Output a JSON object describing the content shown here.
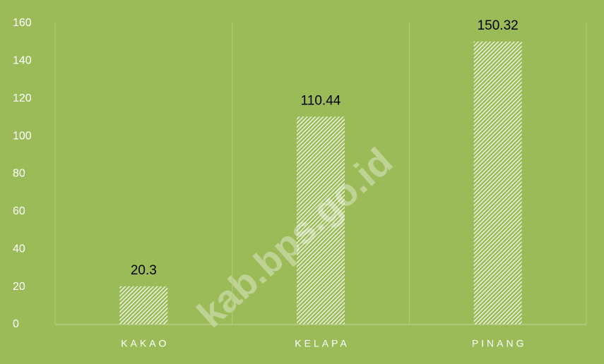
{
  "chart_data": {
    "type": "bar",
    "categories": [
      "KAKAO",
      "KELAPA",
      "PINANG"
    ],
    "values": [
      20.3,
      110.44,
      150.32
    ],
    "color": "#ffffff",
    "background": "#9bbb59",
    "ylim": [
      0,
      160
    ],
    "yticks": [
      0,
      20,
      40,
      60,
      80,
      100,
      120,
      140,
      160
    ],
    "grid": "vertical",
    "hatch": true,
    "watermark": "kab.bps.go.id"
  }
}
